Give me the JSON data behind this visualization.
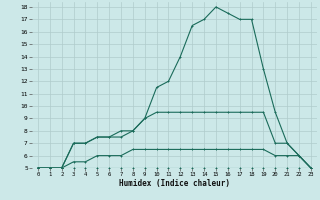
{
  "xlabel": "Humidex (Indice chaleur)",
  "background_color": "#cce8e8",
  "grid_color": "#b0cccc",
  "line_color": "#1a6b5a",
  "xlim": [
    -0.5,
    23.5
  ],
  "ylim": [
    5,
    18.4
  ],
  "x_ticks": [
    0,
    1,
    2,
    3,
    4,
    5,
    6,
    7,
    8,
    9,
    10,
    11,
    12,
    13,
    14,
    15,
    16,
    17,
    18,
    19,
    20,
    21,
    22,
    23
  ],
  "y_ticks": [
    5,
    6,
    7,
    8,
    9,
    10,
    11,
    12,
    13,
    14,
    15,
    16,
    17,
    18
  ],
  "line1_x": [
    0,
    1,
    2,
    3,
    4,
    5,
    6,
    7,
    8,
    9,
    10,
    11,
    12,
    13,
    14,
    15,
    16,
    17,
    18,
    19,
    20,
    21,
    22,
    23
  ],
  "line1_y": [
    5,
    5,
    5,
    5,
    5,
    5,
    5,
    5,
    5,
    5,
    5,
    5,
    5,
    5,
    5,
    5,
    5,
    5,
    5,
    5,
    5,
    5,
    5,
    5
  ],
  "line2_x": [
    0,
    1,
    2,
    3,
    4,
    5,
    6,
    7,
    8,
    9,
    10,
    11,
    12,
    13,
    14,
    15,
    16,
    17,
    18,
    19,
    20,
    21,
    22,
    23
  ],
  "line2_y": [
    5,
    5,
    5,
    5.5,
    5.5,
    6,
    6,
    6,
    6.5,
    6.5,
    6.5,
    6.5,
    6.5,
    6.5,
    6.5,
    6.5,
    6.5,
    6.5,
    6.5,
    6.5,
    6,
    6,
    6,
    5
  ],
  "line3_x": [
    0,
    1,
    2,
    3,
    4,
    5,
    6,
    7,
    8,
    9,
    10,
    11,
    12,
    13,
    14,
    15,
    16,
    17,
    18,
    19,
    20,
    21,
    22,
    23
  ],
  "line3_y": [
    5,
    5,
    5,
    7,
    7,
    7.5,
    7.5,
    8,
    8,
    9,
    9.5,
    9.5,
    9.5,
    9.5,
    9.5,
    9.5,
    9.5,
    9.5,
    9.5,
    9.5,
    7,
    7,
    6,
    5
  ],
  "line4_x": [
    0,
    1,
    2,
    3,
    4,
    5,
    6,
    7,
    8,
    9,
    10,
    11,
    12,
    13,
    14,
    15,
    16,
    17,
    18,
    19,
    20,
    21,
    22,
    23
  ],
  "line4_y": [
    5,
    5,
    5,
    7,
    7,
    7.5,
    7.5,
    7.5,
    8,
    9,
    11.5,
    12,
    14,
    16.5,
    17,
    18,
    17.5,
    17,
    17,
    13,
    9.5,
    7,
    6,
    5
  ]
}
